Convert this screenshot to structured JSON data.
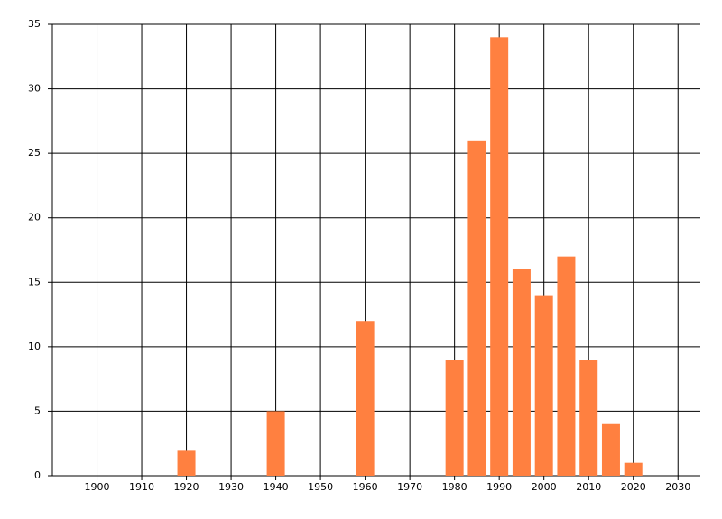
{
  "chart_data": {
    "type": "bar",
    "x": [
      1920,
      1940,
      1960,
      1980,
      1985,
      1990,
      1995,
      2000,
      2005,
      2010,
      2015,
      2020
    ],
    "values": [
      2,
      5,
      12,
      9,
      26,
      34,
      16,
      14,
      17,
      9,
      4,
      1
    ],
    "color": "#ff8040",
    "xlim": [
      1890,
      2035
    ],
    "xticks": [
      1900,
      1910,
      1920,
      1930,
      1940,
      1950,
      1960,
      1970,
      1980,
      1990,
      2000,
      2010,
      2020,
      2030
    ],
    "ylim": [
      0,
      35
    ],
    "yticks": [
      0,
      5,
      10,
      15,
      20,
      25,
      30,
      35
    ],
    "grid": true
  }
}
